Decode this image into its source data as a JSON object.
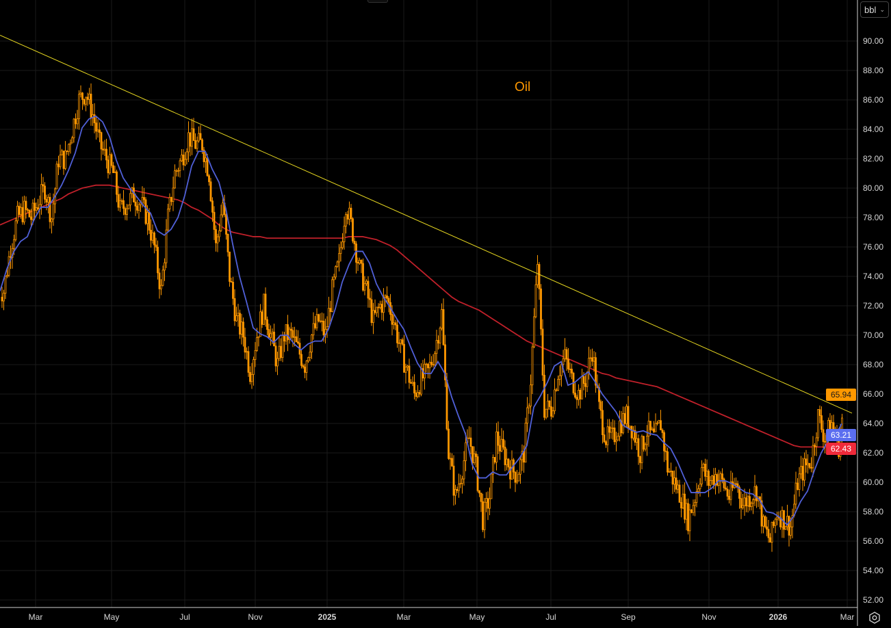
{
  "unit_selector": {
    "value": "bbl"
  },
  "title_label": "Oil",
  "colors": {
    "background": "#000000",
    "candle": "#ff9800",
    "ma_short": "#5060d8",
    "ma_long": "#c0202a",
    "trendline": "#e8d820",
    "grid": "#1a1a1a"
  },
  "price_tags": {
    "last": {
      "value": "65.94",
      "color": "#ff9800",
      "text_color": "#1a1a1a"
    },
    "ma_short": {
      "value": "63.21",
      "color": "#5b6ef0",
      "text_color": "#ffffff"
    },
    "ma_long": {
      "value": "62.43",
      "color": "#f02a3a",
      "text_color": "#ffffff"
    }
  },
  "chart_data": {
    "type": "candlestick",
    "title": "Oil",
    "ylabel": "bbl",
    "ylim": [
      51.7,
      91.7
    ],
    "y_ticks": [
      "52.00",
      "54.00",
      "56.00",
      "58.00",
      "60.00",
      "62.00",
      "64.00",
      "66.00",
      "68.00",
      "70.00",
      "72.00",
      "74.00",
      "76.00",
      "78.00",
      "80.00",
      "82.00",
      "84.00",
      "86.00",
      "88.00",
      "90.00"
    ],
    "x_ticks": [
      "Mar",
      "May",
      "Jul",
      "Nov",
      "2025",
      "Mar",
      "May",
      "Jul",
      "Sep",
      "Nov",
      "2026",
      "Mar"
    ],
    "close": [
      73,
      76,
      78,
      78.5,
      78,
      79,
      80,
      78,
      82,
      82,
      84,
      86,
      86.5,
      85,
      83,
      82,
      81,
      78.5,
      79,
      79.5,
      79,
      78,
      76,
      73,
      78,
      81,
      82,
      83.5,
      83,
      83,
      81,
      76,
      79,
      74,
      71,
      70,
      67.5,
      70,
      72,
      70,
      68,
      70,
      70,
      69,
      68,
      70,
      71,
      70,
      73,
      75,
      79,
      77,
      74.5,
      73,
      71,
      72,
      72.5,
      71,
      69,
      67.5,
      66,
      67,
      67.5,
      69,
      71.5,
      62,
      59,
      61,
      63,
      61,
      57.5,
      59,
      63,
      62,
      61,
      60.5,
      62,
      67,
      75,
      65,
      65,
      67.5,
      68.5,
      67,
      66,
      67,
      69,
      65,
      63,
      63,
      64,
      64.5,
      63.5,
      62,
      63.5,
      63,
      64,
      61,
      60,
      59,
      57.5,
      59,
      61,
      60,
      60.5,
      60,
      59,
      60,
      58.5,
      59,
      59.5,
      57,
      56,
      58,
      57.5,
      57,
      60,
      61,
      61.5,
      64.5,
      63,
      64,
      62.5,
      65.94
    ],
    "ma_long": [
      77.5,
      77.7,
      77.9,
      78.1,
      78.3,
      78.5,
      78.7,
      78.9,
      79.1,
      79.3,
      79.6,
      79.8,
      80,
      80.1,
      80.2,
      80.2,
      80.2,
      80.1,
      80,
      79.9,
      79.8,
      79.7,
      79.6,
      79.5,
      79.4,
      79.3,
      79.2,
      79,
      78.7,
      78.5,
      78.2,
      77.9,
      77.5,
      77.2,
      77,
      76.9,
      76.8,
      76.7,
      76.7,
      76.6,
      76.6,
      76.6,
      76.6,
      76.6,
      76.6,
      76.6,
      76.6,
      76.6,
      76.6,
      76.6,
      76.6,
      76.7,
      76.7,
      76.7,
      76.6,
      76.5,
      76.3,
      76.1,
      75.8,
      75.4,
      75,
      74.6,
      74.2,
      73.8,
      73.4,
      73,
      72.6,
      72.3,
      72.1,
      71.9,
      71.7,
      71.4,
      71.1,
      70.8,
      70.5,
      70.2,
      69.9,
      69.6,
      69.4,
      69.2,
      69,
      68.8,
      68.6,
      68.4,
      68.2,
      68,
      67.8,
      67.6,
      67.4,
      67.3,
      67.1,
      67,
      66.9,
      66.8,
      66.7,
      66.6,
      66.5,
      66.3,
      66.1,
      65.9,
      65.7,
      65.5,
      65.3,
      65.1,
      64.9,
      64.7,
      64.5,
      64.3,
      64.1,
      63.9,
      63.7,
      63.5,
      63.3,
      63.1,
      62.9,
      62.7,
      62.5,
      62.4,
      62.4,
      62.4,
      62.4,
      62.4,
      62.43
    ],
    "trendline": {
      "start": 90.4,
      "end": 64.7
    }
  }
}
